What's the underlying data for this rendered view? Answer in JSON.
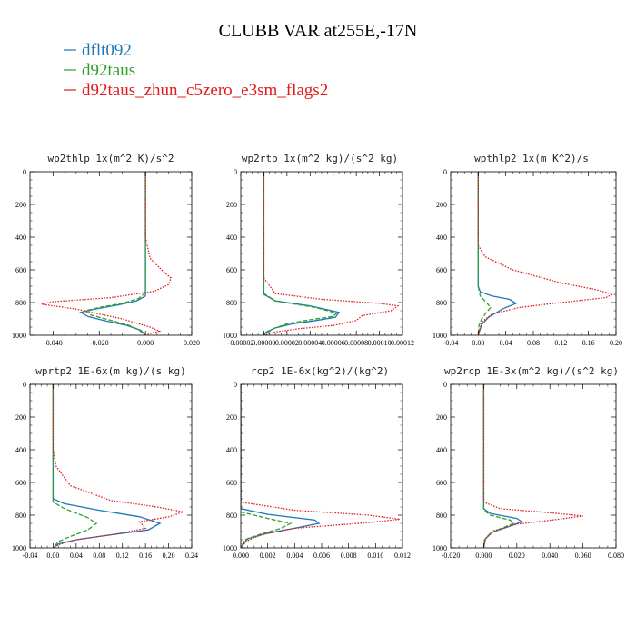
{
  "figure": {
    "title": "CLUBB VAR at255E,-17N"
  },
  "legend": [
    {
      "label": "dflt092",
      "color": "#1f77b4"
    },
    {
      "label": "d92taus",
      "color": "#2ca02c"
    },
    {
      "label": "d92taus_zhun_c5zero_e3sm_flags2",
      "color": "#e31a1c"
    }
  ],
  "chart_data": [
    {
      "type": "line",
      "title": "wp2thlp   1x(m^2 K)/s^2",
      "xlim": [
        -0.05,
        0.02
      ],
      "ylim": [
        1000,
        0
      ],
      "xticks": [
        -0.04,
        -0.02,
        0.0,
        0.02
      ],
      "xtick_labels": [
        "-0.040",
        "-0.020",
        "0.000",
        "0.020"
      ],
      "yticks": [
        0,
        200,
        400,
        600,
        800,
        1000
      ],
      "ytick_labels": [
        "0",
        "200",
        "400",
        "600",
        "800",
        "1000"
      ],
      "series": [
        {
          "name": "dflt092",
          "color": "#1f77b4",
          "dash": "solid",
          "x": [
            0.0,
            0.0,
            0.0,
            0.0,
            0.0,
            -0.004,
            -0.012,
            -0.022,
            -0.028,
            -0.025,
            -0.018,
            -0.008,
            -0.002,
            0.0
          ],
          "y": [
            0,
            300,
            600,
            740,
            760,
            790,
            815,
            840,
            860,
            885,
            910,
            940,
            970,
            1000
          ]
        },
        {
          "name": "d92taus",
          "color": "#2ca02c",
          "dash": "dash",
          "x": [
            0.0,
            0.0,
            0.0,
            0.0,
            -0.003,
            -0.01,
            -0.02,
            -0.026,
            -0.024,
            -0.016,
            -0.008,
            -0.003,
            0.0
          ],
          "y": [
            0,
            300,
            600,
            740,
            775,
            805,
            830,
            850,
            875,
            905,
            935,
            965,
            1000
          ]
        },
        {
          "name": "d92taus_zhun_c5zero_e3sm_flags2",
          "color": "#e31a1c",
          "dash": "dot",
          "x": [
            0.0,
            0.0,
            0.002,
            0.007,
            0.011,
            0.01,
            0.004,
            -0.015,
            -0.04,
            -0.045,
            -0.03,
            -0.01,
            0.002,
            0.006,
            0.002,
            0.0
          ],
          "y": [
            0,
            400,
            530,
            600,
            650,
            690,
            730,
            770,
            795,
            810,
            840,
            900,
            950,
            975,
            990,
            1000
          ]
        }
      ]
    },
    {
      "type": "line",
      "title": "wp2rtp   1x(m^2 kg)/(s^2 kg)",
      "xlim": [
        -2e-05,
        0.00012
      ],
      "ylim": [
        1000,
        0
      ],
      "xticks": [
        -2e-05,
        0.0,
        2e-05,
        4e-05,
        6e-05,
        8e-05,
        0.0001,
        0.00012
      ],
      "xtick_labels": [
        "-0.00002",
        "0.00000",
        "0.00002",
        "0.00004",
        "0.00006",
        "0.00008",
        "0.00010",
        "0.00012"
      ],
      "yticks": [
        0,
        200,
        400,
        600,
        800,
        1000
      ],
      "ytick_labels": [
        "0",
        "200",
        "400",
        "600",
        "800",
        "1000"
      ],
      "series": [
        {
          "name": "dflt092",
          "color": "#1f77b4",
          "dash": "solid",
          "x": [
            0.0,
            0.0,
            0.0,
            0.0,
            1e-05,
            4e-05,
            6.5e-05,
            6.2e-05,
            4.5e-05,
            2.5e-05,
            1e-05,
            2e-06,
            0.0
          ],
          "y": [
            0,
            300,
            600,
            750,
            790,
            820,
            860,
            890,
            910,
            930,
            955,
            980,
            1000
          ]
        },
        {
          "name": "d92taus",
          "color": "#2ca02c",
          "dash": "dash",
          "x": [
            0.0,
            0.0,
            0.0,
            0.0,
            1e-05,
            4.5e-05,
            6.3e-05,
            6e-05,
            4e-05,
            2e-05,
            8e-06,
            0.0
          ],
          "y": [
            0,
            300,
            600,
            745,
            790,
            830,
            865,
            885,
            905,
            930,
            960,
            1000
          ]
        },
        {
          "name": "d92taus_zhun_c5zero_e3sm_flags2",
          "color": "#e31a1c",
          "dash": "dot",
          "x": [
            0.0,
            0.0,
            0.0,
            1e-05,
            5e-05,
            0.0001,
            0.000116,
            0.00011,
            8.5e-05,
            8e-05,
            6e-05,
            3e-05,
            1e-05,
            0.0
          ],
          "y": [
            0,
            300,
            650,
            745,
            780,
            805,
            820,
            850,
            880,
            910,
            940,
            960,
            980,
            1000
          ]
        }
      ]
    },
    {
      "type": "line",
      "title": "wpthlp2   1x(m K^2)/s",
      "xlim": [
        -0.04,
        0.2
      ],
      "ylim": [
        1000,
        0
      ],
      "xticks": [
        -0.04,
        0.0,
        0.04,
        0.08,
        0.12,
        0.16,
        0.2
      ],
      "xtick_labels": [
        "-0.04",
        "0.00",
        "0.04",
        "0.08",
        "0.12",
        "0.16",
        "0.20"
      ],
      "yticks": [
        0,
        200,
        400,
        600,
        800,
        1000
      ],
      "ytick_labels": [
        "0",
        "200",
        "400",
        "600",
        "800",
        "1000"
      ],
      "series": [
        {
          "name": "dflt092",
          "color": "#1f77b4",
          "dash": "solid",
          "x": [
            0.0,
            0.0,
            0.0,
            0.003,
            0.02,
            0.045,
            0.055,
            0.035,
            0.015,
            0.005,
            0.0
          ],
          "y": [
            0,
            300,
            700,
            735,
            760,
            780,
            805,
            840,
            890,
            935,
            1000
          ]
        },
        {
          "name": "d92taus",
          "color": "#2ca02c",
          "dash": "dash",
          "x": [
            0.0,
            0.0,
            0.0,
            0.003,
            0.012,
            0.018,
            0.012,
            0.005,
            0.001,
            0.0
          ],
          "y": [
            0,
            300,
            700,
            760,
            800,
            830,
            860,
            900,
            940,
            1000
          ]
        },
        {
          "name": "d92taus_zhun_c5zero_e3sm_flags2",
          "color": "#e31a1c",
          "dash": "dot",
          "x": [
            0.0,
            0.0,
            0.01,
            0.05,
            0.12,
            0.17,
            0.195,
            0.185,
            0.12,
            0.06,
            0.02,
            0.005,
            0.0
          ],
          "y": [
            0,
            450,
            520,
            600,
            680,
            720,
            750,
            770,
            800,
            830,
            870,
            920,
            1000
          ]
        }
      ]
    },
    {
      "type": "line",
      "title": "wprtp2   1E-6x(m kg)/(s kg)",
      "xlim": [
        -0.04,
        0.24
      ],
      "ylim": [
        1000,
        0
      ],
      "xticks": [
        -0.04,
        0.0,
        0.04,
        0.08,
        0.12,
        0.16,
        0.2,
        0.24
      ],
      "xtick_labels": [
        "-0.04",
        "0.00",
        "0.04",
        "0.08",
        "0.12",
        "0.16",
        "0.20",
        "0.24"
      ],
      "yticks": [
        0,
        200,
        400,
        600,
        800,
        1000
      ],
      "ytick_labels": [
        "0",
        "200",
        "400",
        "600",
        "800",
        "1000"
      ],
      "series": [
        {
          "name": "dflt092",
          "color": "#1f77b4",
          "dash": "solid",
          "x": [
            0.0,
            0.0,
            0.0,
            0.02,
            0.08,
            0.15,
            0.185,
            0.165,
            0.1,
            0.04,
            0.01,
            0.0
          ],
          "y": [
            0,
            300,
            700,
            730,
            770,
            810,
            850,
            890,
            920,
            950,
            975,
            1000
          ]
        },
        {
          "name": "d92taus",
          "color": "#2ca02c",
          "dash": "dash",
          "x": [
            0.0,
            0.0,
            0.0,
            0.02,
            0.06,
            0.075,
            0.06,
            0.03,
            0.01,
            0.0
          ],
          "y": [
            0,
            300,
            720,
            760,
            815,
            850,
            890,
            930,
            960,
            1000
          ]
        },
        {
          "name": "d92taus_zhun_c5zero_e3sm_flags2",
          "color": "#e31a1c",
          "dash": "dot",
          "x": [
            0.0,
            0.0,
            0.005,
            0.03,
            0.1,
            0.18,
            0.225,
            0.2,
            0.15,
            0.16,
            0.11,
            0.04,
            0.01,
            0.0
          ],
          "y": [
            0,
            400,
            500,
            620,
            710,
            750,
            780,
            810,
            840,
            880,
            915,
            950,
            980,
            1000
          ]
        }
      ]
    },
    {
      "type": "line",
      "title": "rcp2   1E-6x(kg^2)/(kg^2)",
      "xlim": [
        0.0,
        0.012
      ],
      "ylim": [
        1000,
        0
      ],
      "xticks": [
        0.0,
        0.002,
        0.004,
        0.006,
        0.008,
        0.01,
        0.012
      ],
      "xtick_labels": [
        "0.000",
        "0.002",
        "0.004",
        "0.006",
        "0.008",
        "0.010",
        "0.012"
      ],
      "yticks": [
        0,
        200,
        400,
        600,
        800,
        1000
      ],
      "ytick_labels": [
        "0",
        "200",
        "400",
        "600",
        "800",
        "1000"
      ],
      "series": [
        {
          "name": "dflt092",
          "color": "#1f77b4",
          "dash": "solid",
          "x": [
            0.0,
            0.0,
            0.0,
            0.002,
            0.0055,
            0.0058,
            0.004,
            0.002,
            0.0005,
            0.0
          ],
          "y": [
            0,
            300,
            760,
            795,
            830,
            850,
            880,
            910,
            945,
            1000
          ]
        },
        {
          "name": "d92taus",
          "color": "#2ca02c",
          "dash": "dash",
          "x": [
            0.0,
            0.0,
            0.0,
            0.002,
            0.0037,
            0.003,
            0.0015,
            0.0003,
            0.0
          ],
          "y": [
            0,
            300,
            780,
            820,
            850,
            880,
            915,
            950,
            1000
          ]
        },
        {
          "name": "d92taus_zhun_c5zero_e3sm_flags2",
          "color": "#e31a1c",
          "dash": "dot",
          "x": [
            0.0,
            0.0,
            0.0,
            0.004,
            0.0095,
            0.0118,
            0.0095,
            0.004,
            0.0015,
            0.0004,
            0.0
          ],
          "y": [
            0,
            300,
            720,
            770,
            800,
            825,
            845,
            880,
            920,
            960,
            1000
          ]
        }
      ]
    },
    {
      "type": "line",
      "title": "wp2rcp   1E-3x(m^2 kg)/(s^2 kg)",
      "xlim": [
        -0.02,
        0.08
      ],
      "ylim": [
        1000,
        0
      ],
      "xticks": [
        -0.02,
        0.0,
        0.02,
        0.04,
        0.06,
        0.08
      ],
      "xtick_labels": [
        "-0.020",
        "0.000",
        "0.020",
        "0.040",
        "0.060",
        "0.080"
      ],
      "yticks": [
        0,
        200,
        400,
        600,
        800,
        1000
      ],
      "ytick_labels": [
        "0",
        "200",
        "400",
        "600",
        "800",
        "1000"
      ],
      "series": [
        {
          "name": "dflt092",
          "color": "#1f77b4",
          "dash": "solid",
          "x": [
            0.0,
            0.0,
            0.0,
            0.004,
            0.02,
            0.023,
            0.015,
            0.005,
            0.001,
            0.0
          ],
          "y": [
            0,
            300,
            760,
            790,
            820,
            840,
            870,
            905,
            945,
            1000
          ]
        },
        {
          "name": "d92taus",
          "color": "#2ca02c",
          "dash": "dash",
          "x": [
            0.0,
            0.0,
            0.0,
            0.004,
            0.016,
            0.018,
            0.011,
            0.004,
            0.0005,
            0.0
          ],
          "y": [
            0,
            300,
            770,
            800,
            830,
            850,
            880,
            910,
            950,
            1000
          ]
        },
        {
          "name": "d92taus_zhun_c5zero_e3sm_flags2",
          "color": "#e31a1c",
          "dash": "dot",
          "x": [
            0.0,
            0.0,
            0.0,
            0.01,
            0.04,
            0.06,
            0.045,
            0.02,
            0.006,
            0.001,
            0.0
          ],
          "y": [
            0,
            300,
            720,
            760,
            785,
            805,
            825,
            855,
            895,
            945,
            1000
          ]
        }
      ]
    }
  ]
}
